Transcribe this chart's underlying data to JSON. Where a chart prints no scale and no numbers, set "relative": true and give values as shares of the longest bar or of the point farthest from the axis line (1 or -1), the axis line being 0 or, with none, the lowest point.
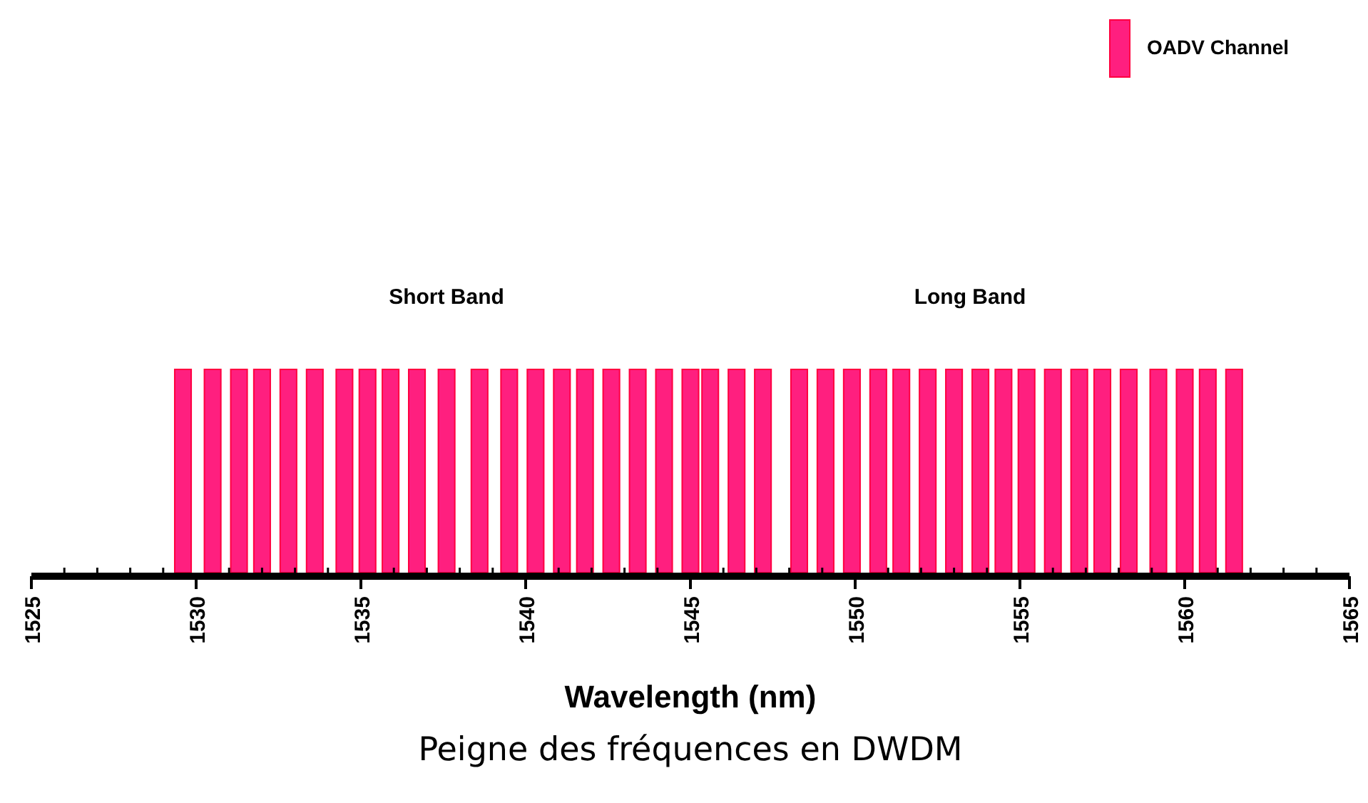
{
  "chart_data": {
    "type": "bar",
    "title": "Peigne des fréquences en DWDM",
    "xlabel": "Wavelength (nm)",
    "relative": true,
    "legend": "top right",
    "tick_labels": "x",
    "annotations": [
      "Short Band",
      "Long Band"
    ],
    "x": [
      1529.6,
      1530.5,
      1531.3,
      1532.0,
      1532.8,
      1533.6,
      1534.5,
      1535.2,
      1535.9,
      1536.7,
      1537.6,
      1538.6,
      1539.5,
      1540.3,
      1541.1,
      1541.8,
      1542.6,
      1543.4,
      1544.2,
      1545.0,
      1545.6,
      1546.4,
      1547.2,
      1548.3,
      1549.1,
      1549.9,
      1550.7,
      1551.4,
      1552.2,
      1553.0,
      1553.8,
      1554.5,
      1555.2,
      1556.0,
      1556.8,
      1557.5,
      1558.3,
      1559.2,
      1560.0,
      1560.7,
      1561.5
    ],
    "series": [
      {
        "name": "OADV Channel",
        "color": "#ff1f7f",
        "values": [
          1,
          1,
          1,
          1,
          1,
          1,
          1,
          1,
          1,
          1,
          1,
          1,
          1,
          1,
          1,
          1,
          1,
          1,
          1,
          1,
          1,
          1,
          1,
          1,
          1,
          1,
          1,
          1,
          1,
          1,
          1,
          1,
          1,
          1,
          1,
          1,
          1,
          1,
          1,
          1,
          1
        ]
      }
    ],
    "xlim": [
      1525,
      1565
    ],
    "xticks": [
      1525,
      {
        "value": 1526,
        "label": null
      },
      {
        "value": 1527,
        "label": null
      },
      {
        "value": 1528,
        "label": null
      },
      {
        "value": 1529,
        "label": null
      },
      1530,
      {
        "value": 1531,
        "label": null
      },
      {
        "value": 1532,
        "label": null
      },
      {
        "value": 1533,
        "label": null
      },
      {
        "value": 1534,
        "label": null
      },
      1535,
      {
        "value": 1536,
        "label": null
      },
      {
        "value": 1537,
        "label": null
      },
      {
        "value": 1538,
        "label": null
      },
      {
        "value": 1539,
        "label": null
      },
      1540,
      {
        "value": 1541,
        "label": null
      },
      {
        "value": 1542,
        "label": null
      },
      {
        "value": 1543,
        "label": null
      },
      {
        "value": 1544,
        "label": null
      },
      1545,
      {
        "value": 1546,
        "label": null
      },
      {
        "value": 1547,
        "label": null
      },
      {
        "value": 1548,
        "label": null
      },
      {
        "value": 1549,
        "label": null
      },
      1550,
      {
        "value": 1551,
        "label": null
      },
      {
        "value": 1552,
        "label": null
      },
      {
        "value": 1553,
        "label": null
      },
      {
        "value": 1554,
        "label": null
      },
      1555,
      {
        "value": 1556,
        "label": null
      },
      {
        "value": 1557,
        "label": null
      },
      {
        "value": 1558,
        "label": null
      },
      {
        "value": 1559,
        "label": null
      },
      1560,
      {
        "value": 1561,
        "label": null
      },
      {
        "value": 1562,
        "label": null
      },
      {
        "value": 1563,
        "label": null
      },
      {
        "value": 1564,
        "label": null
      },
      1565
    ]
  }
}
